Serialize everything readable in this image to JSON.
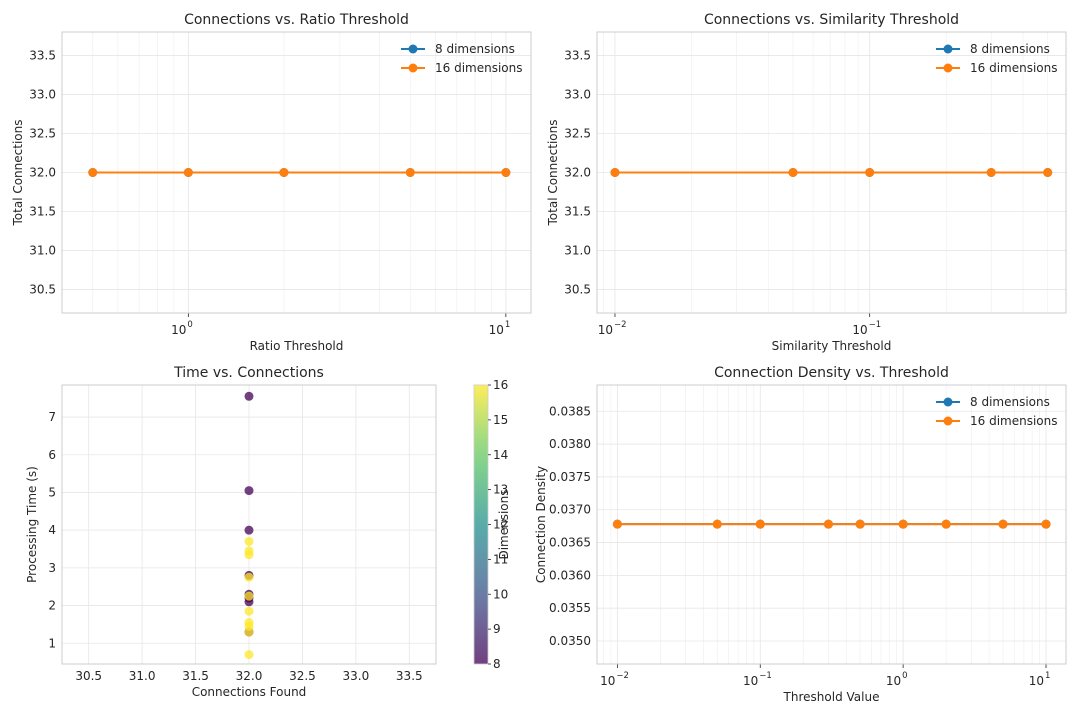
{
  "chart_data": [
    {
      "id": "ratio",
      "type": "line",
      "title": "Connections vs. Ratio Threshold",
      "xlabel": "Ratio Threshold",
      "ylabel": "Total Connections",
      "xscale": "log",
      "xlim": [
        0.4,
        12
      ],
      "ylim": [
        30.2,
        33.8
      ],
      "yticks": [
        "30.5",
        "31.0",
        "31.5",
        "32.0",
        "32.5",
        "33.0",
        "33.5"
      ],
      "xticks": [
        {
          "base": "10",
          "exp": "0",
          "value": 1
        },
        {
          "base": "10",
          "exp": "1",
          "value": 10
        }
      ],
      "legend": "top-right",
      "grid": true,
      "series": [
        {
          "name": "8 dimensions",
          "color": "#1f77b4",
          "x": [
            0.5,
            1,
            2,
            5,
            10
          ],
          "y": [
            32,
            32,
            32,
            32,
            32
          ]
        },
        {
          "name": "16 dimensions",
          "color": "#ff7f0e",
          "x": [
            0.5,
            1,
            2,
            5,
            10
          ],
          "y": [
            32,
            32,
            32,
            32,
            32
          ]
        }
      ]
    },
    {
      "id": "similarity",
      "type": "line",
      "title": "Connections vs. Similarity Threshold",
      "xlabel": "Similarity Threshold",
      "ylabel": "Total Connections",
      "xscale": "log",
      "xlim": [
        0.0085,
        0.59
      ],
      "ylim": [
        30.2,
        33.8
      ],
      "yticks": [
        "30.5",
        "31.0",
        "31.5",
        "32.0",
        "32.5",
        "33.0",
        "33.5"
      ],
      "xticks": [
        {
          "base": "10",
          "exp": "−2",
          "value": 0.01
        },
        {
          "base": "10",
          "exp": "−1",
          "value": 0.1
        }
      ],
      "legend": "top-right",
      "grid": true,
      "series": [
        {
          "name": "8 dimensions",
          "color": "#1f77b4",
          "x": [
            0.01,
            0.05,
            0.1,
            0.3,
            0.5
          ],
          "y": [
            32,
            32,
            32,
            32,
            32
          ]
        },
        {
          "name": "16 dimensions",
          "color": "#ff7f0e",
          "x": [
            0.01,
            0.05,
            0.1,
            0.3,
            0.5
          ],
          "y": [
            32,
            32,
            32,
            32,
            32
          ]
        }
      ]
    },
    {
      "id": "time",
      "type": "scatter",
      "title": "Time vs. Connections",
      "xlabel": "Connections Found",
      "ylabel": "Processing Time (s)",
      "xlim": [
        30.25,
        33.75
      ],
      "ylim": [
        0.45,
        7.85
      ],
      "xticks": [
        "30.5",
        "31.0",
        "31.5",
        "32.0",
        "32.5",
        "33.0",
        "33.5"
      ],
      "yticks": [
        "1",
        "2",
        "3",
        "4",
        "5",
        "6",
        "7"
      ],
      "grid": true,
      "colorbar": {
        "label": "Dimensions",
        "min": 8,
        "max": 16,
        "ticks": [
          "8",
          "9",
          "10",
          "11",
          "12",
          "13",
          "14",
          "15",
          "16"
        ],
        "colormap": "viridis"
      },
      "points": [
        {
          "x": 32,
          "y": 7.55,
          "d": 8
        },
        {
          "x": 32,
          "y": 5.05,
          "d": 8
        },
        {
          "x": 32,
          "y": 4.0,
          "d": 8
        },
        {
          "x": 32,
          "y": 2.8,
          "d": 8
        },
        {
          "x": 32,
          "y": 2.3,
          "d": 8
        },
        {
          "x": 32,
          "y": 2.2,
          "d": 8
        },
        {
          "x": 32,
          "y": 2.1,
          "d": 8
        },
        {
          "x": 32,
          "y": 1.3,
          "d": 8
        },
        {
          "x": 32,
          "y": 3.7,
          "d": 16
        },
        {
          "x": 32,
          "y": 3.45,
          "d": 16
        },
        {
          "x": 32,
          "y": 3.35,
          "d": 16
        },
        {
          "x": 32,
          "y": 2.75,
          "d": 16
        },
        {
          "x": 32,
          "y": 2.25,
          "d": 16
        },
        {
          "x": 32,
          "y": 1.85,
          "d": 16
        },
        {
          "x": 32,
          "y": 1.55,
          "d": 16
        },
        {
          "x": 32,
          "y": 1.45,
          "d": 16
        },
        {
          "x": 32,
          "y": 1.3,
          "d": 16
        },
        {
          "x": 32,
          "y": 0.7,
          "d": 16
        }
      ]
    },
    {
      "id": "density",
      "type": "line",
      "title": "Connection Density vs. Threshold",
      "xlabel": "Threshold Value",
      "ylabel": "Connection Density",
      "xscale": "log",
      "xlim": [
        0.0072,
        13.8
      ],
      "ylim": [
        0.03465,
        0.0389
      ],
      "yticks": [
        "0.0350",
        "0.0355",
        "0.0360",
        "0.0365",
        "0.0370",
        "0.0375",
        "0.0380",
        "0.0385"
      ],
      "xticks": [
        {
          "base": "10",
          "exp": "−2",
          "value": 0.01
        },
        {
          "base": "10",
          "exp": "−1",
          "value": 0.1
        },
        {
          "base": "10",
          "exp": "0",
          "value": 1
        },
        {
          "base": "10",
          "exp": "1",
          "value": 10
        }
      ],
      "legend": "top-right",
      "grid": true,
      "series": [
        {
          "name": "8 dimensions",
          "color": "#1f77b4",
          "x": [
            0.01,
            0.05,
            0.1,
            0.3,
            0.5,
            1,
            2,
            5,
            10
          ],
          "y": [
            0.03678,
            0.03678,
            0.03678,
            0.03678,
            0.03678,
            0.03678,
            0.03678,
            0.03678,
            0.03678
          ]
        },
        {
          "name": "16 dimensions",
          "color": "#ff7f0e",
          "x": [
            0.01,
            0.05,
            0.1,
            0.3,
            0.5,
            1,
            2,
            5,
            10
          ],
          "y": [
            0.03678,
            0.03678,
            0.03678,
            0.03678,
            0.03678,
            0.03678,
            0.03678,
            0.03678,
            0.03678
          ]
        }
      ]
    }
  ]
}
